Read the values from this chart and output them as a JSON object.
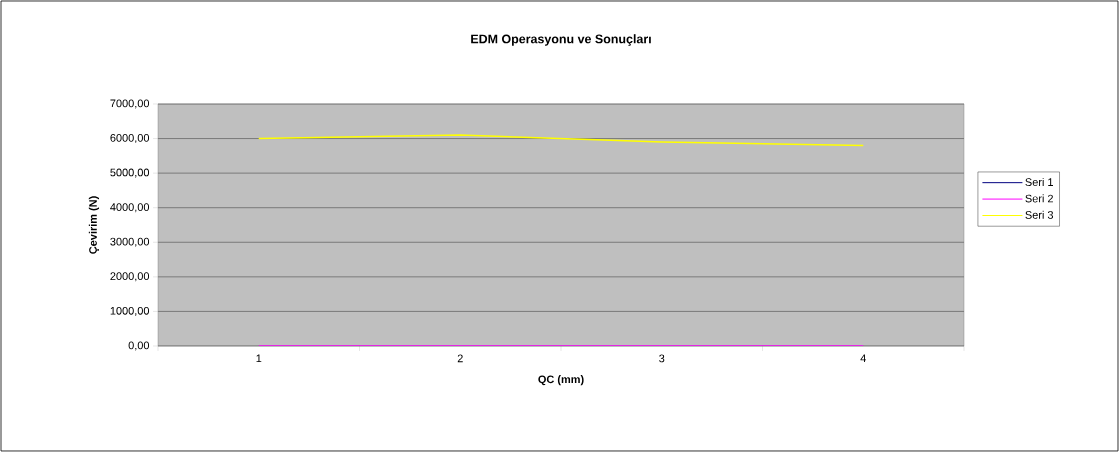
{
  "chart_data": {
    "type": "line",
    "title": "EDM Operasyonu ve Sonuçları",
    "xlabel": "QC (mm)",
    "ylabel": "Çevirim (N)",
    "categories": [
      "1",
      "2",
      "3",
      "4"
    ],
    "series": [
      {
        "name": "Seri 1",
        "color": "#000080",
        "values": [
          null,
          null,
          null,
          null
        ]
      },
      {
        "name": "Seri 2",
        "color": "#ff00ff",
        "values": [
          0,
          0,
          0,
          0
        ]
      },
      {
        "name": "Seri 3",
        "color": "#ffff00",
        "values": [
          6000,
          6100,
          5900,
          5800
        ]
      }
    ],
    "ylim": [
      0,
      7000
    ],
    "yticks": [
      {
        "value": 0,
        "label": "0,00"
      },
      {
        "value": 1000,
        "label": "1000,00"
      },
      {
        "value": 2000,
        "label": "2000,00"
      },
      {
        "value": 3000,
        "label": "3000,00"
      },
      {
        "value": 4000,
        "label": "4000,00"
      },
      {
        "value": 5000,
        "label": "5000,00"
      },
      {
        "value": 6000,
        "label": "6000,00"
      },
      {
        "value": 7000,
        "label": "7000,00"
      }
    ],
    "grid": "y",
    "legend": "right",
    "marker": "none",
    "line_style": "solid"
  }
}
